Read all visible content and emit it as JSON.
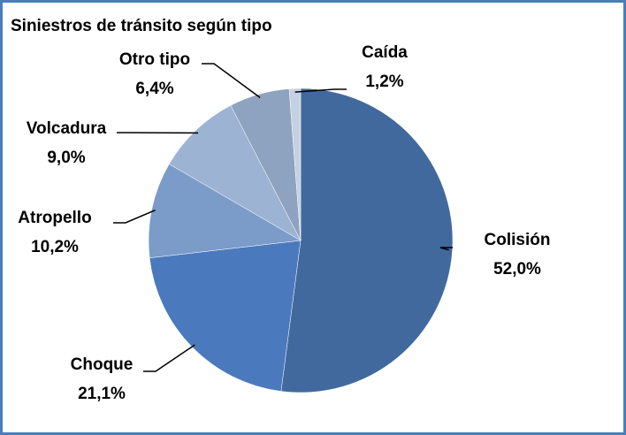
{
  "chart_data": {
    "type": "pie",
    "title": "Siniestros de tránsito según tipo",
    "categories": [
      "Colisión",
      "Choque",
      "Atropello",
      "Volcadura",
      "Otro tipo",
      "Caída"
    ],
    "values": [
      52.0,
      21.1,
      10.2,
      9.0,
      6.4,
      1.2
    ],
    "value_labels": [
      "52,0%",
      "21,1%",
      "10,2%",
      "9,0%",
      "6,4%",
      "1,2%"
    ],
    "colors": [
      "#41699e",
      "#4a7abd",
      "#7b9bc8",
      "#9db3d4",
      "#8ea3c0",
      "#c5d0e0"
    ]
  }
}
